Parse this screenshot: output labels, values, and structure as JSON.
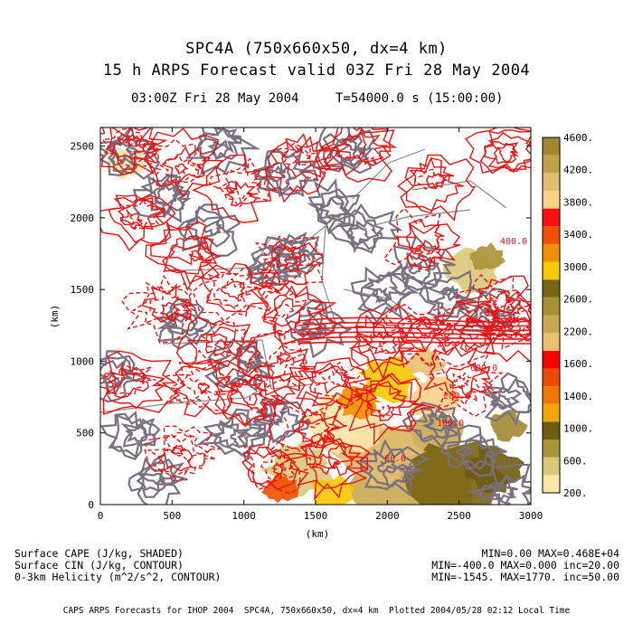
{
  "header": {
    "title_line1": "SPC4A (750x660x50, dx=4 km)",
    "title_line2": "15 h ARPS Forecast valid 03Z Fri 28 May 2004",
    "valid_time": "03:00Z Fri 28 May 2004",
    "model_time": "T=54000.0 s (15:00:00)"
  },
  "axes": {
    "xlabel": "(km)",
    "ylabel": "(km)",
    "x_ticks": [
      "0",
      "500",
      "1000",
      "1500",
      "2000",
      "2500",
      "3000"
    ],
    "y_ticks": [
      "0",
      "500",
      "1000",
      "1500",
      "2000",
      "2500"
    ]
  },
  "colorbar": {
    "labels": [
      "200.",
      "600.",
      "1000.",
      "1400.",
      "1600.",
      "2200.",
      "2600.",
      "3000.",
      "3400.",
      "3800.",
      "4200.",
      "4600."
    ],
    "colors": [
      "#fde4a8",
      "#d9c87a",
      "#a89436",
      "#6e5c12",
      "#f0a800",
      "#f07800",
      "#f04800",
      "#ff0000",
      "#e8c070",
      "#c8a850",
      "#a89030",
      "#786414",
      "#f8c800",
      "#f09000",
      "#f05000",
      "#ff1010",
      "#fcd088",
      "#e0bc70",
      "#c0a048",
      "#a08830"
    ]
  },
  "contour_labels": [
    "200.0",
    "100.0",
    "400.0",
    "600.0",
    "60.0"
  ],
  "legend": {
    "line1": "Surface CAPE (J/kg, SHADED)",
    "line2": "Surface CIN (J/kg, CONTOUR)",
    "line3": "0-3km Helicity (m^2/s^2, CONTOUR)"
  },
  "stats": {
    "line1": "MIN=0.00 MAX=0.468E+04",
    "line2": "MIN=-400.0 MAX=0.000 inc=20.00",
    "line3": "MIN=-1545. MAX=1770. inc=50.00"
  },
  "footer": "CAPS ARPS Forecasts for IHOP 2004  SPC4A, 750x660x50, dx=4 km  Plotted 2004/05/28 02:12 Local Time",
  "colors": {
    "helicity": "#ee1111",
    "cin": "#7a7080",
    "boundaries": "#888888"
  }
}
